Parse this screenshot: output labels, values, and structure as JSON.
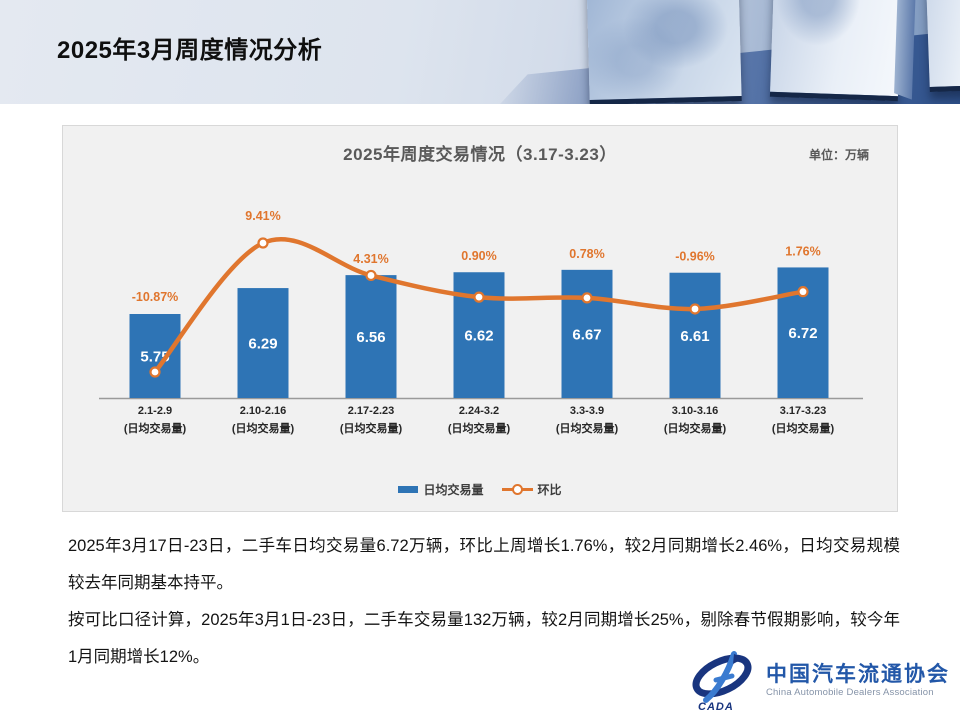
{
  "slide": {
    "title": "2025年3月周度情况分析"
  },
  "chart": {
    "panel_title": "2025年周度交易情况（3.17-3.23）",
    "unit_label": "单位：万辆",
    "legend": {
      "bar_label": "日均交易量",
      "line_label": "环比"
    }
  },
  "chart_data": {
    "type": "bar",
    "title": "2025年周度交易情况（3.17-3.23）",
    "unit": "万辆",
    "categories": [
      "2.1-2.9",
      "2.10-2.16",
      "2.17-2.23",
      "2.24-3.2",
      "3.3-3.9",
      "3.10-3.16",
      "3.17-3.23"
    ],
    "category_sublabel": "(日均交易量)",
    "series": [
      {
        "name": "日均交易量",
        "type": "bar",
        "color": "#2E74B5",
        "values": [
          5.75,
          6.29,
          6.56,
          6.62,
          6.67,
          6.61,
          6.72
        ]
      },
      {
        "name": "环比",
        "type": "line",
        "color": "#E0762E",
        "values": [
          -10.87,
          9.41,
          4.31,
          0.9,
          0.78,
          -0.96,
          1.76
        ],
        "labels": [
          "-10.87%",
          "9.41%",
          "4.31%",
          "0.90%",
          "0.78%",
          "-0.96%",
          "1.76%"
        ]
      }
    ],
    "bar_axis_min": 4.0,
    "grid": false,
    "legend_position": "bottom"
  },
  "body": {
    "paragraph1": "2025年3月17日-23日，二手车日均交易量6.72万辆，环比上周增长1.76%，较2月同期增长2.46%，日均交易规模较去年同期基本持平。",
    "paragraph2": "按可比口径计算，2025年3月1日-23日，二手车交易量132万辆，较2月同期增长25%，剔除春节假期影响，较今年1月同期增长12%。"
  },
  "logo": {
    "name_cn": "中国汽车流通协会",
    "name_en": "China Automobile Dealers Association",
    "emblem_text": "CADA"
  },
  "colors": {
    "bar": "#2E74B5",
    "line": "#E0762E",
    "value_label": "#FFFFFF",
    "percent_label": "#E0762E",
    "panel_bg": "#F1F1F1",
    "logo_blue": "#2257A8"
  }
}
